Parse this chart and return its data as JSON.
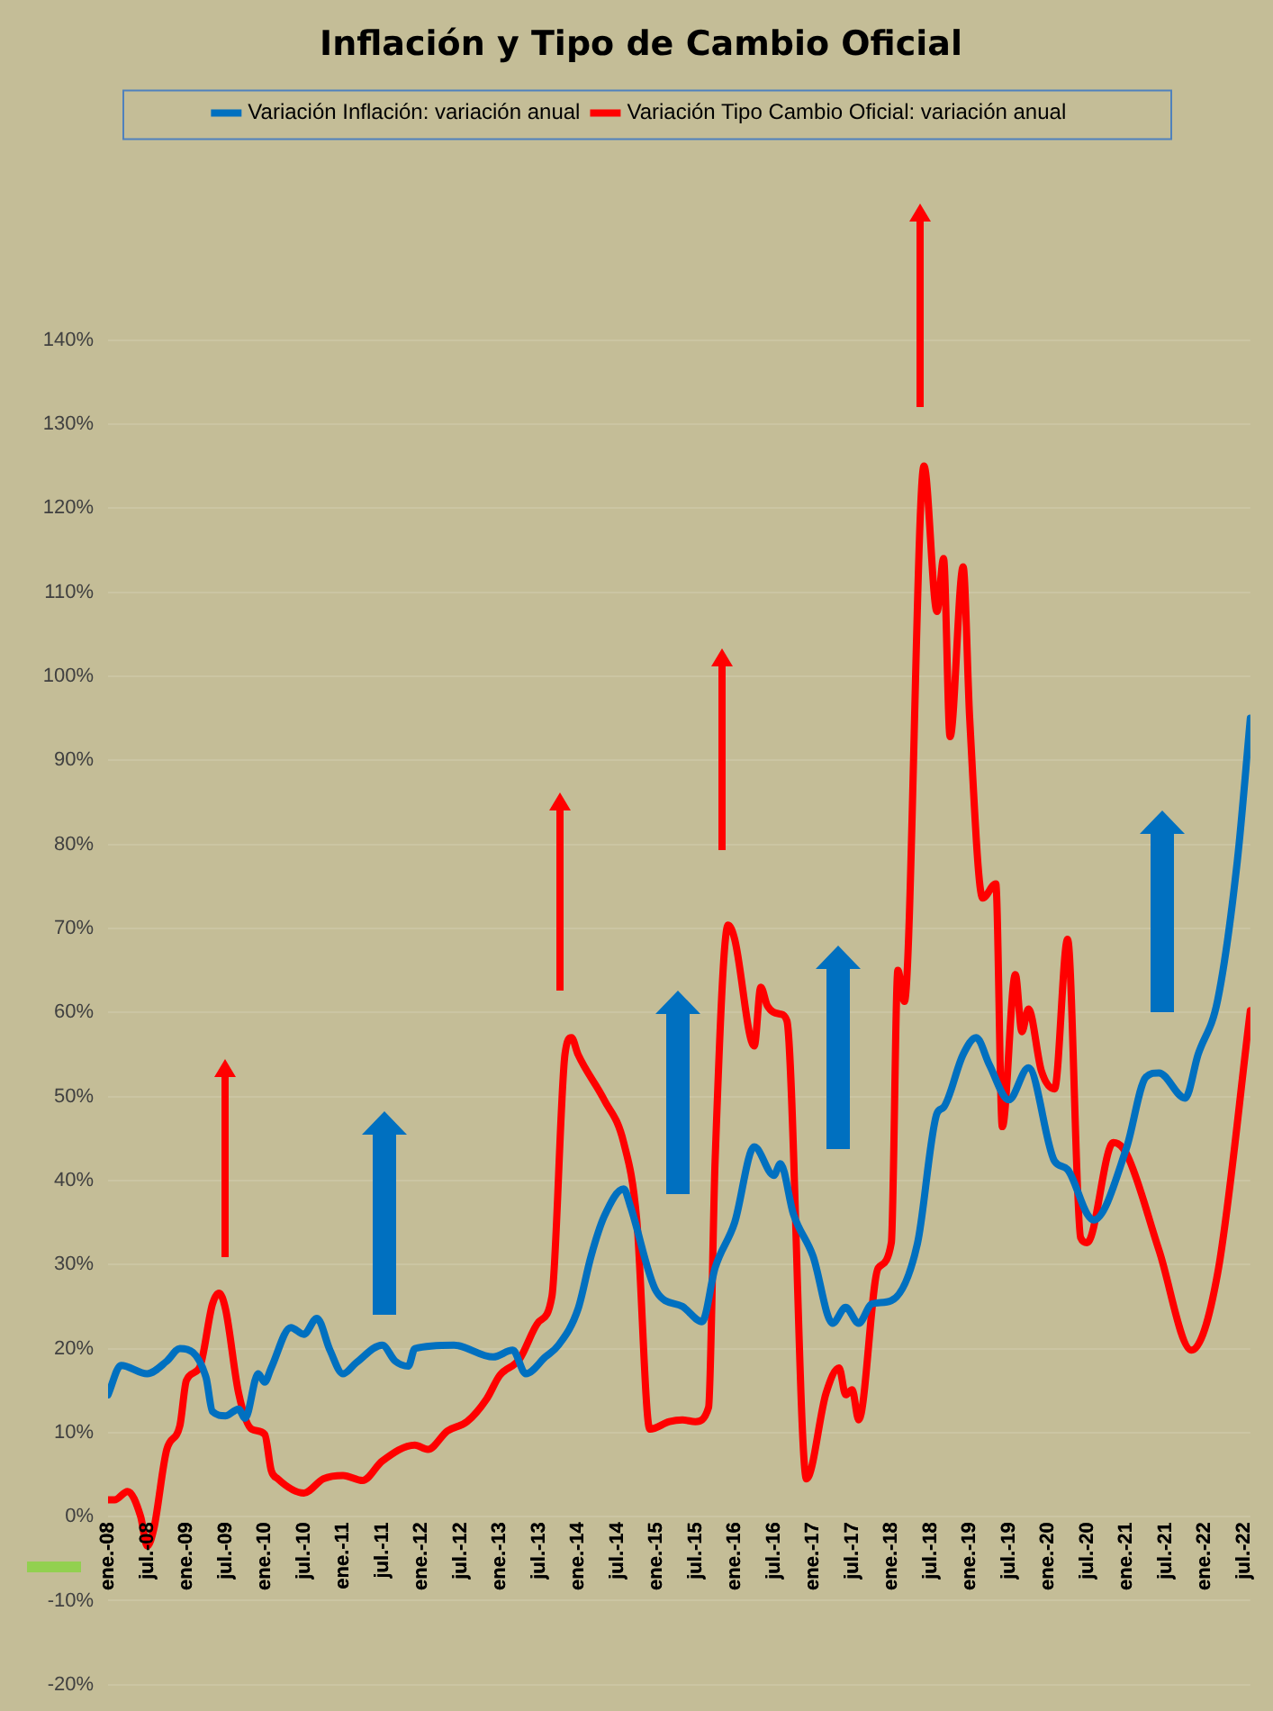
{
  "chart_data": {
    "type": "line",
    "title": "Inflación y Tipo de Cambio Oficial",
    "legend": "top",
    "grid": "y",
    "marker": "none",
    "line_style": "solid",
    "xlim": [
      "2008-01",
      "2022-08"
    ],
    "xticks": [
      {
        "value": "2008-01",
        "label": "ene.-08"
      },
      {
        "value": "2008-07",
        "label": "jul.-08"
      },
      {
        "value": "2009-01",
        "label": "ene.-09"
      },
      {
        "value": "2009-07",
        "label": "jul.-09"
      },
      {
        "value": "2010-01",
        "label": "ene.-10"
      },
      {
        "value": "2010-07",
        "label": "jul.-10"
      },
      {
        "value": "2011-01",
        "label": "ene.-11"
      },
      {
        "value": "2011-07",
        "label": "jul.-11"
      },
      {
        "value": "2012-01",
        "label": "ene.-12"
      },
      {
        "value": "2012-07",
        "label": "jul.-12"
      },
      {
        "value": "2013-01",
        "label": "ene.-13"
      },
      {
        "value": "2013-07",
        "label": "jul.-13"
      },
      {
        "value": "2014-01",
        "label": "ene.-14"
      },
      {
        "value": "2014-07",
        "label": "jul.-14"
      },
      {
        "value": "2015-01",
        "label": "ene.-15"
      },
      {
        "value": "2015-07",
        "label": "jul.-15"
      },
      {
        "value": "2016-01",
        "label": "ene.-16"
      },
      {
        "value": "2016-07",
        "label": "jul.-16"
      },
      {
        "value": "2017-01",
        "label": "ene.-17"
      },
      {
        "value": "2017-07",
        "label": "jul.-17"
      },
      {
        "value": "2018-01",
        "label": "ene.-18"
      },
      {
        "value": "2018-07",
        "label": "jul.-18"
      },
      {
        "value": "2019-01",
        "label": "ene.-19"
      },
      {
        "value": "2019-07",
        "label": "jul.-19"
      },
      {
        "value": "2020-01",
        "label": "ene.-20"
      },
      {
        "value": "2020-07",
        "label": "jul.-20"
      },
      {
        "value": "2021-01",
        "label": "ene.-21"
      },
      {
        "value": "2021-07",
        "label": "jul.-21"
      },
      {
        "value": "2022-01",
        "label": "ene.-22"
      },
      {
        "value": "2022-07",
        "label": "jul.-22"
      }
    ],
    "ylim": [
      -20,
      140
    ],
    "yticks": [
      {
        "value": -20,
        "label": "-20%"
      },
      {
        "value": -10,
        "label": "-10%"
      },
      {
        "value": 0,
        "label": "0%"
      },
      {
        "value": 10,
        "label": "10%"
      },
      {
        "value": 20,
        "label": "20%"
      },
      {
        "value": 30,
        "label": "30%"
      },
      {
        "value": 40,
        "label": "40%"
      },
      {
        "value": 50,
        "label": "50%"
      },
      {
        "value": 60,
        "label": "60%"
      },
      {
        "value": 70,
        "label": "70%"
      },
      {
        "value": 80,
        "label": "80%"
      },
      {
        "value": 90,
        "label": "90%"
      },
      {
        "value": 100,
        "label": "100%"
      },
      {
        "value": 110,
        "label": "110%"
      },
      {
        "value": 120,
        "label": "120%"
      },
      {
        "value": 130,
        "label": "130%"
      },
      {
        "value": 140,
        "label": "140%"
      }
    ],
    "series": [
      {
        "name": "Variación Inflación: variación anual",
        "color": "#0070c0",
        "x": [
          "2008-01",
          "2008-03",
          "2008-07",
          "2008-10",
          "2008-12",
          "2009-04",
          "2009-05",
          "2009-07",
          "2009-09",
          "2009-10",
          "2009-12",
          "2010-01",
          "2010-02",
          "2010-05",
          "2010-07",
          "2010-09",
          "2010-11",
          "2011-01",
          "2011-03",
          "2011-07",
          "2011-09",
          "2011-11",
          "2011-12",
          "2012-06",
          "2012-12",
          "2013-03",
          "2013-05",
          "2013-08",
          "2013-10",
          "2014-01",
          "2014-03",
          "2014-05",
          "2014-08",
          "2014-09",
          "2015-01",
          "2015-05",
          "2015-08",
          "2015-10",
          "2016-01",
          "2016-04",
          "2016-07",
          "2016-08",
          "2016-10",
          "2017-01",
          "2017-04",
          "2017-06",
          "2017-08",
          "2017-10",
          "2018-01",
          "2018-05",
          "2018-08",
          "2018-09",
          "2018-12",
          "2019-02",
          "2019-04",
          "2019-07",
          "2019-10",
          "2020-02",
          "2020-04",
          "2020-07",
          "2020-08",
          "2021-01",
          "2021-04",
          "2021-06",
          "2021-10",
          "2021-12",
          "2022-03",
          "2022-06",
          "2022-08"
        ],
        "values": [
          14.5,
          18,
          17,
          18.5,
          20,
          16.6,
          12.5,
          12,
          12.8,
          11.7,
          17,
          16,
          17.7,
          22.5,
          21.7,
          23.6,
          19.8,
          17,
          18.3,
          20.4,
          18.5,
          17.9,
          20,
          20.4,
          19,
          19.8,
          17,
          19,
          20.4,
          24.7,
          31,
          35.7,
          39,
          37,
          26.8,
          25,
          23.2,
          29.6,
          35,
          44,
          40.6,
          42,
          36,
          31,
          23,
          24.9,
          23,
          25.3,
          25.7,
          32.5,
          48,
          48.7,
          55,
          57,
          53.8,
          49.6,
          53.4,
          42.3,
          41.3,
          36,
          35.3,
          43.8,
          52.3,
          52.8,
          49.8,
          55,
          61.5,
          78,
          95
        ]
      },
      {
        "name": "Variación Tipo Cambio Oficial: variación anual",
        "color": "#ff0000",
        "x": [
          "2008-01",
          "2008-02",
          "2008-04",
          "2008-06",
          "2008-07",
          "2008-08",
          "2008-10",
          "2008-12",
          "2009-01",
          "2009-03",
          "2009-05",
          "2009-06",
          "2009-07",
          "2009-09",
          "2009-11",
          "2010-01",
          "2010-02",
          "2010-03",
          "2010-07",
          "2010-10",
          "2011-01",
          "2011-04",
          "2011-07",
          "2011-12",
          "2012-02",
          "2012-05",
          "2012-08",
          "2012-11",
          "2013-01",
          "2013-04",
          "2013-07",
          "2013-09",
          "2013-11",
          "2013-12",
          "2014-01",
          "2014-05",
          "2014-08",
          "2014-10",
          "2014-12",
          "2015-03",
          "2015-05",
          "2015-07",
          "2015-09",
          "2015-10",
          "2015-12",
          "2016-01",
          "2016-04",
          "2016-05",
          "2016-06",
          "2016-08",
          "2016-09",
          "2016-12",
          "2017-03",
          "2017-05",
          "2017-06",
          "2017-07",
          "2017-08",
          "2017-11",
          "2018-01",
          "2018-02",
          "2018-03",
          "2018-06",
          "2018-08",
          "2018-09",
          "2018-10",
          "2018-12",
          "2019-01",
          "2019-03",
          "2019-05",
          "2019-06",
          "2019-08",
          "2019-09",
          "2019-10",
          "2019-12",
          "2020-02",
          "2020-04",
          "2020-06",
          "2020-07",
          "2020-11",
          "2021-01",
          "2021-06",
          "2021-11",
          "2022-03",
          "2022-08"
        ],
        "values": [
          2,
          2,
          3,
          0,
          -3.5,
          -1.5,
          8,
          10.8,
          16.2,
          17.7,
          25.3,
          26.6,
          24.7,
          14.7,
          10.4,
          9.8,
          5.5,
          4.5,
          2.8,
          4.5,
          4.9,
          4.3,
          6.6,
          8.5,
          8,
          10.2,
          11.3,
          14,
          16.8,
          18.7,
          23.2,
          26.2,
          55,
          57,
          55,
          49.6,
          44.5,
          35.3,
          10.4,
          11.3,
          11.5,
          11.3,
          13,
          42.3,
          70.4,
          68.7,
          56,
          63,
          60.8,
          59.8,
          59,
          4.5,
          14.7,
          17.7,
          14.5,
          15.1,
          11.5,
          29.6,
          32.6,
          65,
          61.3,
          125,
          107.7,
          114,
          92.8,
          113,
          95,
          73.6,
          75.3,
          46.4,
          64.5,
          57.7,
          60.4,
          53,
          50.9,
          68.7,
          33.2,
          32.6,
          44.5,
          43.2,
          31.7,
          19.8,
          29,
          60.2
        ]
      }
    ]
  }
}
